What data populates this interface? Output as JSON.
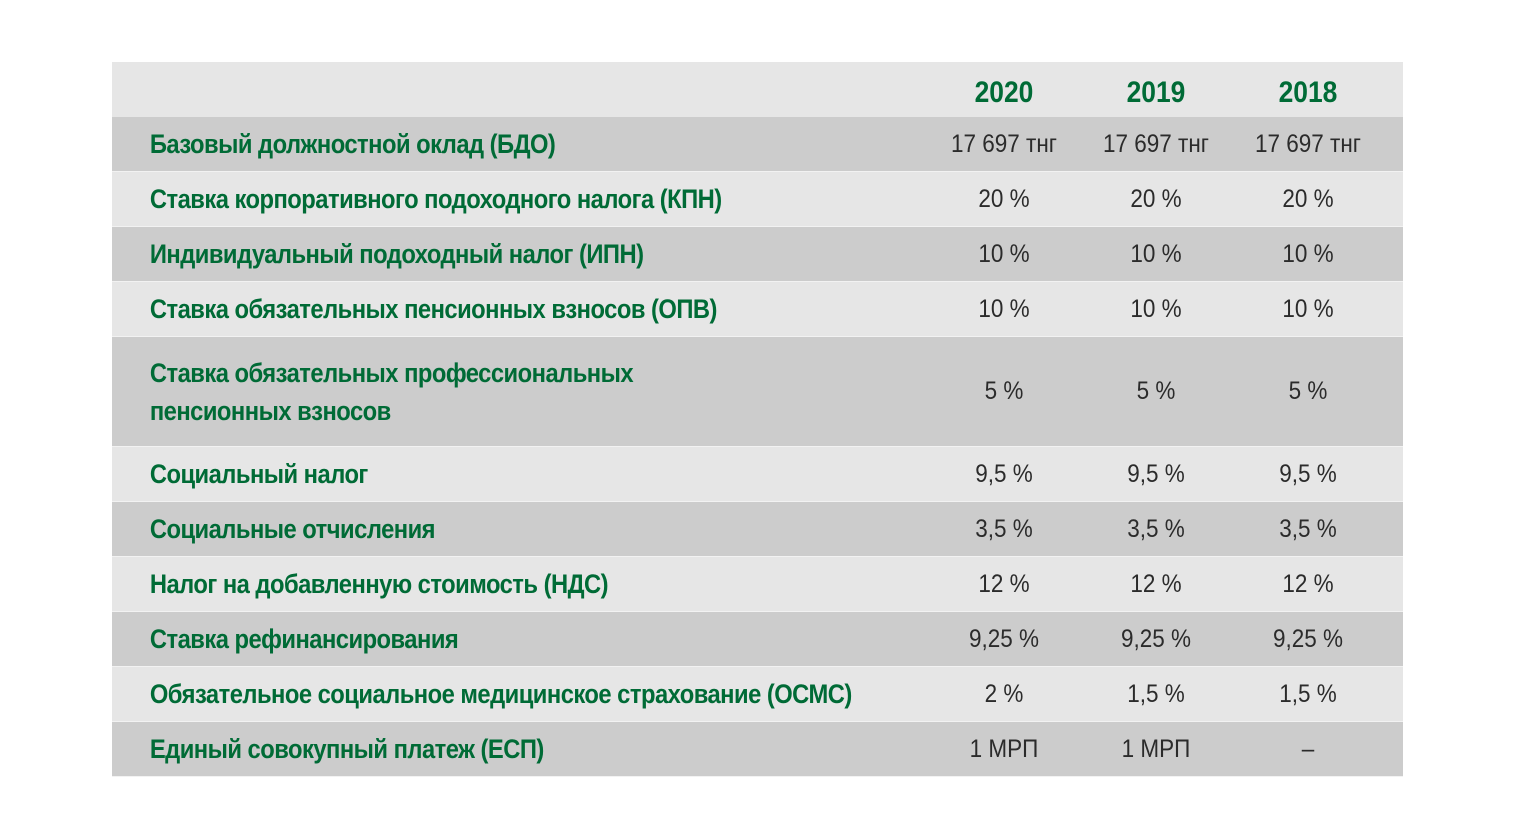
{
  "table": {
    "columns": [
      "2020",
      "2019",
      "2018"
    ],
    "rows": [
      {
        "label": "Базовый должностной оклад (БДО)",
        "values": [
          "17 697 тнг",
          "17 697 тнг",
          "17 697 тнг"
        ]
      },
      {
        "label": "Ставка корпоративного подоходного налога (КПН)",
        "values": [
          "20 %",
          "20 %",
          "20 %"
        ]
      },
      {
        "label": "Индивидуальный подоходный налог (ИПН)",
        "values": [
          "10 %",
          "10 %",
          "10 %"
        ]
      },
      {
        "label": "Ставка обязательных пенсионных взносов (ОПВ)",
        "values": [
          "10 %",
          "10 %",
          "10 %"
        ]
      },
      {
        "label_line1": "Ставка обязательных профессиональных",
        "label_line2": "пенсионных взносов",
        "values": [
          "5 %",
          "5 %",
          "5 %"
        ]
      },
      {
        "label": "Социальный налог",
        "values": [
          "9,5 %",
          "9,5 %",
          "9,5 %"
        ]
      },
      {
        "label": "Социальные отчисления",
        "values": [
          "3,5 %",
          "3,5 %",
          "3,5 %"
        ]
      },
      {
        "label": "Налог на добавленную стоимость (НДС)",
        "values": [
          "12 %",
          "12 %",
          "12 %"
        ]
      },
      {
        "label": "Ставка рефинансирования",
        "values": [
          "9,25 %",
          "9,25 %",
          "9,25 %"
        ]
      },
      {
        "label": "Обязательное социальное медицинское страхование (ОСМС)",
        "values": [
          "2 %",
          "1,5 %",
          "1,5 %"
        ]
      },
      {
        "label": "Единый совокупный платеж (ЕСП)",
        "values": [
          "1 МРП",
          "1 МРП",
          "–"
        ]
      }
    ]
  }
}
